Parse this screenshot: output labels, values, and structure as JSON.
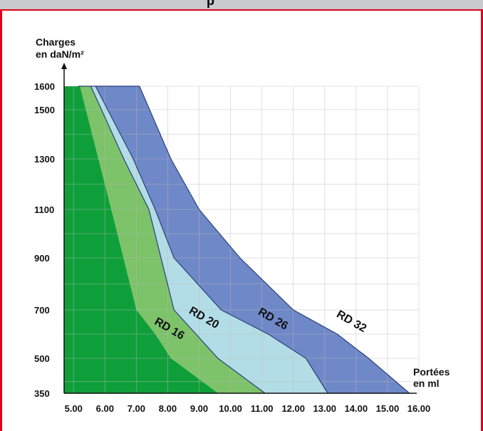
{
  "header": {
    "title_fragment": "p"
  },
  "colors": {
    "frame_border": "#e0001b",
    "header_bg": "#c9cacc",
    "rd16": "#0f9f3a",
    "rd20": "#7cc36a",
    "rd26": "#b3dde6",
    "rd32": "#6f88c8",
    "grid": "#b9b9b9"
  },
  "chart_data": {
    "type": "area",
    "ylabel_line1": "Charges",
    "ylabel_line2": "en daN/m²",
    "xlabel_line1": "Portées",
    "xlabel_line2": "en ml",
    "xlim": [
      4.7,
      16.0
    ],
    "ylim": [
      350,
      1600
    ],
    "x_ticks": [
      "5.00",
      "6.00",
      "7.00",
      "8.00",
      "9.00",
      "10.00",
      "11.00",
      "12.00",
      "13.00",
      "14.00",
      "15.00",
      "16.00"
    ],
    "x_tick_values": [
      5,
      6,
      7,
      8,
      9,
      10,
      11,
      12,
      13,
      14,
      15,
      16
    ],
    "y_ticks": [
      "350",
      "500",
      "700",
      "900",
      "1100",
      "1300",
      "1500",
      "1600"
    ],
    "y_tick_values": [
      350,
      500,
      700,
      900,
      1100,
      1300,
      1500,
      1600
    ],
    "series": [
      {
        "name": "RD 16",
        "color_key": "rd16",
        "points": [
          [
            4.7,
            1600
          ],
          [
            5.2,
            1600
          ],
          [
            6.2,
            1100
          ],
          [
            7.0,
            700
          ],
          [
            7.6,
            600
          ],
          [
            8.1,
            500
          ],
          [
            9.6,
            350
          ]
        ]
      },
      {
        "name": "RD 20",
        "color_key": "rd20",
        "points": [
          [
            5.15,
            1600
          ],
          [
            5.55,
            1600
          ],
          [
            6.6,
            1300
          ],
          [
            7.4,
            1100
          ],
          [
            8.2,
            700
          ],
          [
            8.9,
            600
          ],
          [
            9.6,
            500
          ],
          [
            11.1,
            350
          ]
        ]
      },
      {
        "name": "RD 26",
        "color_key": "rd26",
        "points": [
          [
            5.55,
            1600
          ],
          [
            5.7,
            1600
          ],
          [
            6.9,
            1300
          ],
          [
            7.6,
            1100
          ],
          [
            8.2,
            900
          ],
          [
            9.7,
            700
          ],
          [
            11.2,
            600
          ],
          [
            12.4,
            500
          ],
          [
            13.1,
            350
          ]
        ]
      },
      {
        "name": "RD 32",
        "color_key": "rd32",
        "points": [
          [
            5.7,
            1600
          ],
          [
            7.1,
            1600
          ],
          [
            8.1,
            1300
          ],
          [
            9.0,
            1100
          ],
          [
            10.3,
            900
          ],
          [
            12.0,
            700
          ],
          [
            13.4,
            600
          ],
          [
            14.4,
            500
          ],
          [
            15.7,
            350
          ]
        ]
      }
    ],
    "labels": [
      {
        "text": "RD 16",
        "x": 8.0,
        "y": 610,
        "rotate": 30
      },
      {
        "text": "RD 20",
        "x": 9.1,
        "y": 655,
        "rotate": 30
      },
      {
        "text": "RD 26",
        "x": 11.3,
        "y": 650,
        "rotate": 30
      },
      {
        "text": "RD 32",
        "x": 13.8,
        "y": 640,
        "rotate": 30
      }
    ]
  }
}
